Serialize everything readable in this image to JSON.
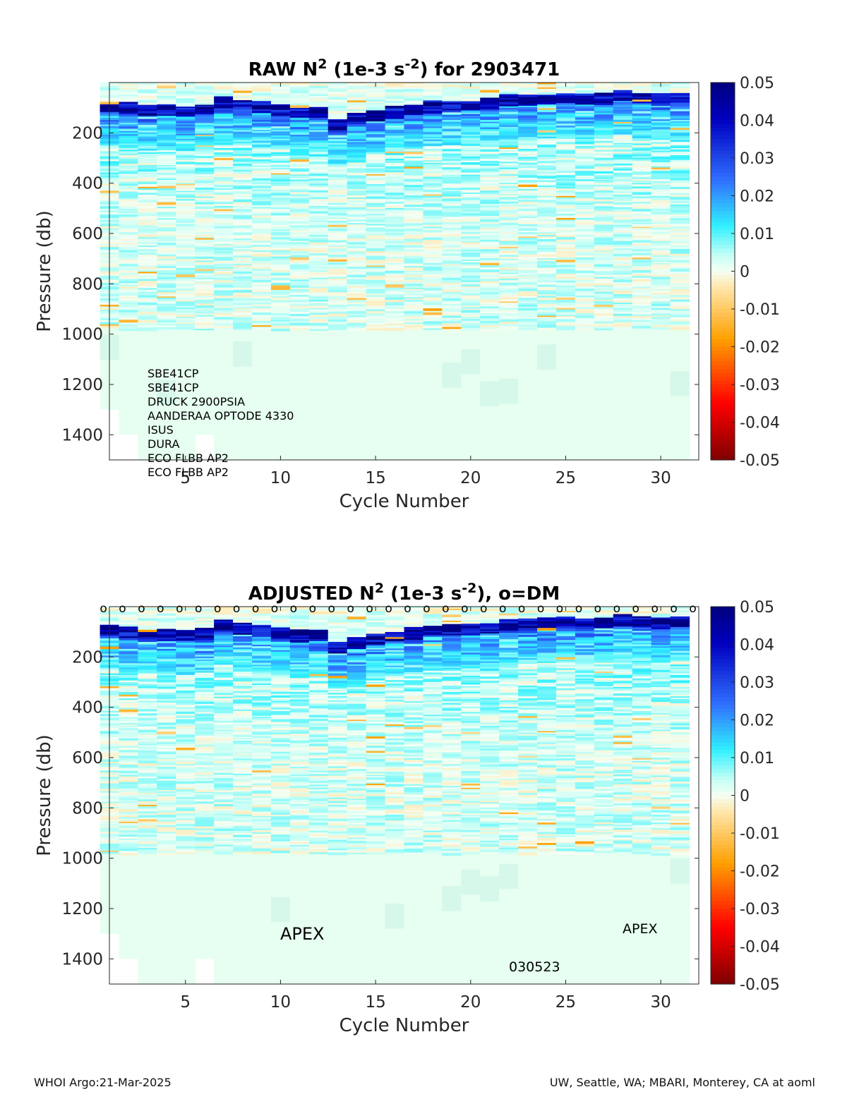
{
  "footer": {
    "left": "WHOI Argo:21-Mar-2025",
    "right": "UW, Seattle, WA; MBARI, Monterey, CA at aoml"
  },
  "colormap": {
    "name": "jet-with-white-center",
    "stops": [
      "#7f0000",
      "#ff0000",
      "#ff9a00",
      "#ffe8b0",
      "#ffffff",
      "#e6fff0",
      "#30f0ff",
      "#3070ff",
      "#0000c0",
      "#00007f"
    ]
  },
  "chart_data": [
    {
      "type": "heatmap",
      "title_text": "RAW N² (1e-3 s⁻²) for 2903471",
      "xlabel": "Cycle Number",
      "ylabel": "Pressure (db)",
      "x_ticks": [
        5,
        10,
        15,
        20,
        25,
        30
      ],
      "y_ticks": [
        200,
        400,
        600,
        800,
        1000,
        1200,
        1400
      ],
      "xlim": [
        1,
        32
      ],
      "ylim": [
        1500,
        0
      ],
      "colorbar": {
        "min": -0.05,
        "max": 0.05,
        "ticks": [
          "0.05",
          "0.04",
          "0.03",
          "0.02",
          "0.01",
          "0",
          "-0.01",
          "-0.02",
          "-0.03",
          "-0.04",
          "-0.05"
        ]
      },
      "cycles": [
        1,
        2,
        3,
        4,
        5,
        6,
        7,
        8,
        9,
        10,
        11,
        12,
        13,
        14,
        15,
        16,
        17,
        18,
        19,
        20,
        21,
        22,
        23,
        24,
        25,
        26,
        27,
        28,
        29,
        30,
        31
      ],
      "mixed_layer_depth_db": [
        90,
        95,
        105,
        105,
        110,
        100,
        70,
        80,
        90,
        100,
        110,
        110,
        160,
        140,
        125,
        110,
        100,
        90,
        85,
        85,
        80,
        65,
        65,
        60,
        55,
        60,
        60,
        45,
        55,
        60,
        55
      ],
      "max_pressure_db": [
        1300,
        1400,
        1500,
        1500,
        1500,
        1400,
        1500,
        1500,
        1500,
        1500,
        1500,
        1500,
        1500,
        1500,
        1500,
        1500,
        1500,
        1500,
        1500,
        1500,
        1500,
        1500,
        1500,
        1500,
        1500,
        1500,
        1500,
        1500,
        1500,
        1500,
        1500
      ],
      "sensors": [
        "SBE41CP",
        "SBE41CP",
        "DRUCK 2900PSIA",
        "AANDERAA OPTODE 4330",
        "ISUS",
        "DURA",
        "ECO FLBB AP2",
        "ECO FLBB AP2"
      ],
      "dm_markers": false
    },
    {
      "type": "heatmap",
      "title_text": "ADJUSTED N² (1e-3 s⁻²), o=DM",
      "xlabel": "Cycle Number",
      "ylabel": "Pressure (db)",
      "x_ticks": [
        5,
        10,
        15,
        20,
        25,
        30
      ],
      "y_ticks": [
        200,
        400,
        600,
        800,
        1000,
        1200,
        1400
      ],
      "xlim": [
        1,
        32
      ],
      "ylim": [
        1500,
        0
      ],
      "colorbar": {
        "min": -0.05,
        "max": 0.05,
        "ticks": [
          "0.05",
          "0.04",
          "0.03",
          "0.02",
          "0.01",
          "0",
          "-0.01",
          "-0.02",
          "-0.03",
          "-0.04",
          "-0.05"
        ]
      },
      "cycles": [
        1,
        2,
        3,
        4,
        5,
        6,
        7,
        8,
        9,
        10,
        11,
        12,
        13,
        14,
        15,
        16,
        17,
        18,
        19,
        20,
        21,
        22,
        23,
        24,
        25,
        26,
        27,
        28,
        29,
        30,
        31
      ],
      "mixed_layer_depth_db": [
        90,
        95,
        105,
        105,
        110,
        100,
        70,
        80,
        90,
        100,
        110,
        110,
        160,
        140,
        125,
        110,
        100,
        90,
        85,
        85,
        80,
        65,
        65,
        60,
        55,
        60,
        60,
        45,
        55,
        60,
        55
      ],
      "max_pressure_db": [
        1300,
        1400,
        1500,
        1500,
        1500,
        1400,
        1500,
        1500,
        1500,
        1500,
        1500,
        1500,
        1500,
        1500,
        1500,
        1500,
        1500,
        1500,
        1500,
        1500,
        1500,
        1500,
        1500,
        1500,
        1500,
        1500,
        1500,
        1500,
        1500,
        1500,
        1500
      ],
      "dm_marker": "o",
      "dm_markers": true,
      "annotations": [
        "APEX",
        "APEX",
        "030523"
      ]
    }
  ]
}
